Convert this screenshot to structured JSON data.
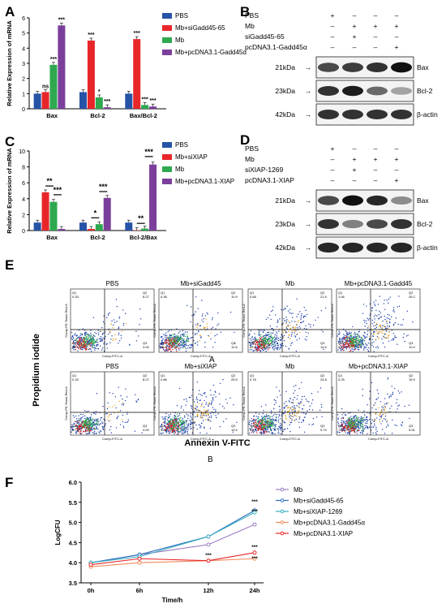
{
  "panels": {
    "A": {
      "label": "A"
    },
    "B": {
      "label": "B"
    },
    "C": {
      "label": "C"
    },
    "D": {
      "label": "D"
    },
    "E": {
      "label": "E"
    },
    "F": {
      "label": "F"
    }
  },
  "colors": {
    "blue": "#2653a6",
    "red": "#e8262a",
    "green": "#2fa84f",
    "purple": "#7b3f9b"
  },
  "chart_data": [
    {
      "panel": "A",
      "type": "bar",
      "ylabel": "Relative Expression of mRNA",
      "ylim": [
        0,
        6
      ],
      "yticks": [
        "0",
        "1",
        "2",
        "3",
        "4",
        "5",
        "6"
      ],
      "categories": [
        "Bax",
        "Bcl-2",
        "Bax/Bcl-2"
      ],
      "series": [
        {
          "name": "PBS",
          "color": "#2653a6",
          "values": [
            1.0,
            1.1,
            1.0
          ]
        },
        {
          "name": "Mb+siGadd45-65",
          "color": "#e8262a",
          "values": [
            1.1,
            4.5,
            4.6
          ]
        },
        {
          "name": "Mb",
          "color": "#2fa84f",
          "values": [
            2.9,
            0.75,
            0.25
          ]
        },
        {
          "name": "Mb+pcDNA3.1-Gadd45α",
          "color": "#7b3f9b",
          "values": [
            5.5,
            0.1,
            0.15
          ]
        }
      ],
      "annotations": [
        {
          "group": 0,
          "series": 1,
          "text": "ns"
        },
        {
          "group": 0,
          "series": 2,
          "text": "***"
        },
        {
          "group": 0,
          "series": 3,
          "text": "***"
        },
        {
          "group": 1,
          "series": 1,
          "text": "***"
        },
        {
          "group": 1,
          "series": 2,
          "text": "*"
        },
        {
          "group": 1,
          "series": 3,
          "text": "***"
        },
        {
          "group": 2,
          "series": 1,
          "text": "***"
        },
        {
          "group": 2,
          "series": 2,
          "text": "***"
        },
        {
          "group": 2,
          "series": 3,
          "text": "***"
        }
      ]
    },
    {
      "panel": "C",
      "type": "bar",
      "ylabel": "Relative Expression of mRNA",
      "ylim": [
        0,
        10
      ],
      "yticks": [
        "0",
        "2",
        "4",
        "6",
        "8",
        "10"
      ],
      "categories": [
        "Bax",
        "Bcl-2",
        "Bcl-2/Bax"
      ],
      "series": [
        {
          "name": "PBS",
          "color": "#2653a6",
          "values": [
            1.0,
            1.0,
            1.0
          ]
        },
        {
          "name": "Mb+siXIAP",
          "color": "#e8262a",
          "values": [
            4.8,
            0.2,
            0.05
          ]
        },
        {
          "name": "Mb",
          "color": "#2fa84f",
          "values": [
            3.6,
            0.8,
            0.25
          ]
        },
        {
          "name": "Mb+pcDNA3.1-XIAP",
          "color": "#7b3f9b",
          "values": [
            0.2,
            4.1,
            8.3
          ]
        }
      ],
      "brackets": [
        {
          "group": 0,
          "from": 1,
          "to": 2,
          "level": 5.6,
          "text": "**"
        },
        {
          "group": 0,
          "from": 2,
          "to": 3,
          "level": 4.5,
          "text": "***"
        },
        {
          "group": 1,
          "from": 1,
          "to": 2,
          "level": 1.6,
          "text": "*"
        },
        {
          "group": 1,
          "from": 2,
          "to": 3,
          "level": 4.9,
          "text": "***"
        },
        {
          "group": 2,
          "from": 1,
          "to": 2,
          "level": 0.9,
          "text": "**"
        },
        {
          "group": 2,
          "from": 2,
          "to": 3,
          "level": 9.3,
          "text": "***"
        }
      ]
    },
    {
      "panel": "F",
      "type": "line",
      "xlabel": "Time/h",
      "ylabel": "LogCFU",
      "x": [
        "0h",
        "6h",
        "12h",
        "24h"
      ],
      "ylim": [
        3.5,
        6.0
      ],
      "yticks": [
        "3.5",
        "4.0",
        "4.5",
        "5.0",
        "5.5",
        "6.0"
      ],
      "series": [
        {
          "name": "Mb",
          "color": "#9b7cc4",
          "values": [
            4.0,
            4.2,
            4.45,
            4.95
          ]
        },
        {
          "name": "Mb+siGadd45-65",
          "color": "#2a6fc0",
          "values": [
            4.0,
            4.2,
            4.65,
            5.3
          ]
        },
        {
          "name": "Mb+siXIAP-1269",
          "color": "#3ab0c0",
          "values": [
            4.0,
            4.15,
            4.65,
            5.25
          ]
        },
        {
          "name": "Mb+pcDNA3.1-Gadd45α",
          "color": "#f08a5a",
          "values": [
            3.9,
            4.0,
            4.05,
            4.1
          ]
        },
        {
          "name": "Mb+pcDNA3.1-XIAP",
          "color": "#e8262a",
          "values": [
            3.95,
            4.1,
            4.05,
            4.25
          ]
        }
      ],
      "annotations": [
        {
          "x": 2,
          "text": "***"
        },
        {
          "x": 3,
          "text": "***"
        },
        {
          "x": 3,
          "text": "***"
        },
        {
          "x": 3,
          "text": "***"
        },
        {
          "x": 3,
          "text": "***"
        }
      ]
    }
  ],
  "blotB": {
    "rows": [
      "PBS",
      "Mb",
      "siGadd45-65",
      "pcDNA3.1-Gadd45α"
    ],
    "marks": [
      [
        "+",
        "–",
        "–",
        "–"
      ],
      [
        "–",
        "+",
        "+",
        "+"
      ],
      [
        "–",
        "+",
        "–",
        "–"
      ],
      [
        "–",
        "–",
        "–",
        "+"
      ]
    ],
    "bands": [
      {
        "kda": "21kDa",
        "name": "Bax",
        "intensity": [
          0.7,
          0.75,
          0.8,
          0.95
        ]
      },
      {
        "kda": "23kDa",
        "name": "Bcl-2",
        "intensity": [
          0.8,
          0.9,
          0.55,
          0.3
        ]
      },
      {
        "kda": "42kDa",
        "name": "β-actin",
        "intensity": [
          0.8,
          0.8,
          0.8,
          0.8
        ]
      }
    ]
  },
  "blotD": {
    "rows": [
      "PBS",
      "Mb",
      "siXIAP-1269",
      "pcDNA3.1-XIAP"
    ],
    "marks": [
      [
        "+",
        "–",
        "–",
        "–"
      ],
      [
        "–",
        "+",
        "+",
        "+"
      ],
      [
        "–",
        "+",
        "–",
        "–"
      ],
      [
        "–",
        "–",
        "–",
        "+"
      ]
    ],
    "bands": [
      {
        "kda": "21kDa",
        "name": "Bax",
        "intensity": [
          0.7,
          0.95,
          0.85,
          0.4
        ]
      },
      {
        "kda": "23kDa",
        "name": "Bcl-2",
        "intensity": [
          0.8,
          0.45,
          0.7,
          0.8
        ]
      },
      {
        "kda": "42kDa",
        "name": "β-actin",
        "intensity": [
          0.85,
          0.85,
          0.85,
          0.85
        ]
      }
    ]
  },
  "flow": {
    "ylabel": "Propidium iodide",
    "xlabel": "Annexin V-FITC",
    "axis_y": "Comp-PE-Texas Red-A",
    "axis_x": "Comp-FITC-A",
    "rowA_tag": "A",
    "rowB_tag": "B",
    "row1": [
      {
        "title": "PBS",
        "q1": "0.33",
        "q2": "8.27",
        "q3": "4.00",
        "q4": "87.4"
      },
      {
        "title": "Mb+siGadd45",
        "q1": "0.36",
        "q2": "10.9",
        "q3": "12.6",
        "q4": "76.6"
      },
      {
        "title": "Mb",
        "q1": "0.68",
        "q2": "21.9",
        "q3": "14.6",
        "q4": "63.7"
      },
      {
        "title": "Mb+pcDNA3.1-Gadd45",
        "q1": "1.06",
        "q2": "26.2",
        "q3": "10.4",
        "q4": "62.6"
      }
    ],
    "row2": [
      {
        "title": "PBS",
        "q1": "0.33",
        "q2": "8.27",
        "q3": "4.00",
        "q4": "87.4"
      },
      {
        "title": "Mb+siXIAP",
        "q1": "0.86",
        "q2": "25.5",
        "q3": "19.4",
        "q4": "55.2"
      },
      {
        "title": "Mb",
        "q1": "0.76",
        "q2": "24.8",
        "q3": "9.74",
        "q4": "64.7"
      },
      {
        "title": "Mb+pcDNA3.1-XIAP",
        "q1": "0.25",
        "q2": "15.9",
        "q3": "5.51",
        "q4": "78.4"
      }
    ]
  }
}
